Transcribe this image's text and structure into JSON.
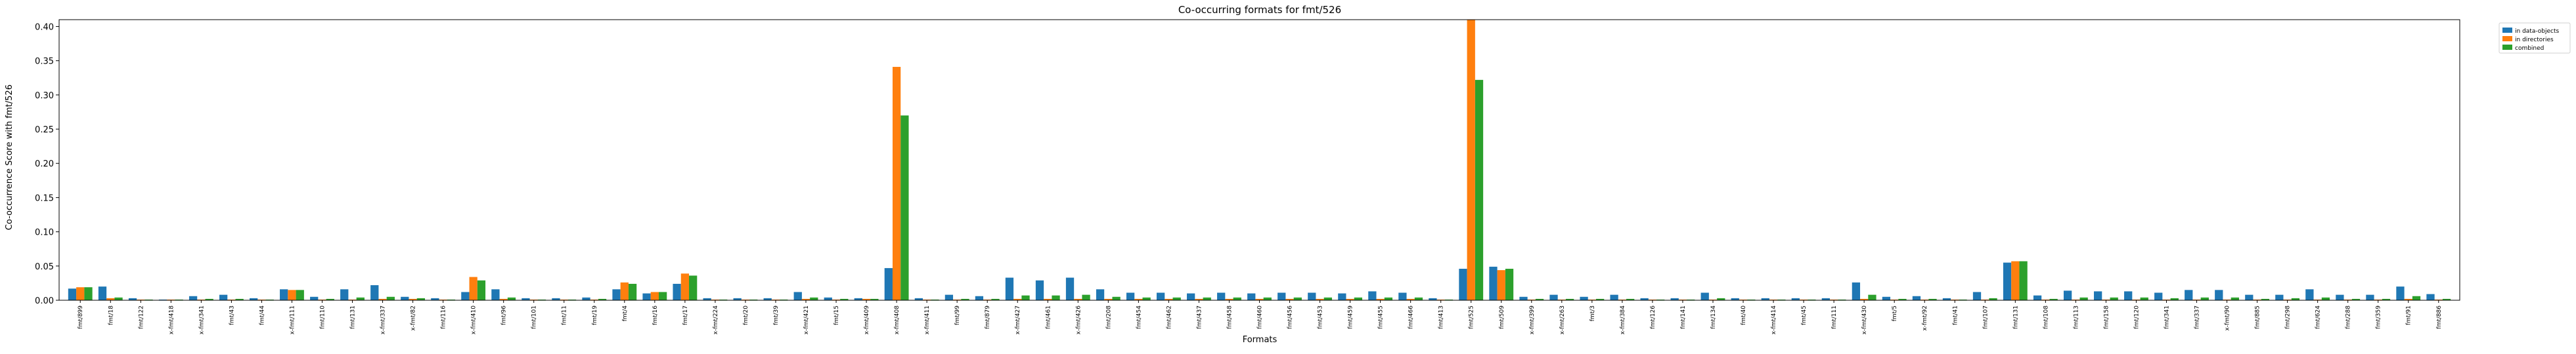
{
  "chart_data": {
    "type": "bar",
    "title": "Co-occurring formats for fmt/526",
    "xlabel": "Formats",
    "ylabel": "Co-occurrence Score with fmt/526",
    "ylim": [
      0,
      0.41
    ],
    "yticks": [
      0.0,
      0.05,
      0.1,
      0.15,
      0.2,
      0.25,
      0.3,
      0.35,
      0.4
    ],
    "grid": false,
    "legend": "outside-top-right",
    "categories": [
      "fmt/899",
      "fmt/18",
      "fmt/122",
      "x-fmt/418",
      "x-fmt/341",
      "fmt/43",
      "fmt/44",
      "x-fmt/111",
      "fmt/110",
      "fmt/131",
      "x-fmt/337",
      "x-fmt/82",
      "fmt/116",
      "x-fmt/410",
      "fmt/96",
      "fmt/101",
      "fmt/11",
      "fmt/19",
      "fmt/4",
      "fmt/16",
      "fmt/17",
      "x-fmt/224",
      "fmt/20",
      "fmt/39",
      "x-fmt/421",
      "fmt/15",
      "x-fmt/409",
      "x-fmt/408",
      "x-fmt/411",
      "fmt/99",
      "fmt/879",
      "x-fmt/427",
      "fmt/461",
      "x-fmt/426",
      "fmt/208",
      "fmt/454",
      "fmt/462",
      "fmt/437",
      "fmt/458",
      "fmt/460",
      "fmt/456",
      "fmt/453",
      "fmt/459",
      "fmt/455",
      "fmt/466",
      "fmt/413",
      "fmt/525",
      "fmt/509",
      "x-fmt/399",
      "x-fmt/263",
      "fmt/3",
      "x-fmt/384",
      "fmt/126",
      "fmt/141",
      "fmt/134",
      "fmt/40",
      "x-fmt/414",
      "fmt/45",
      "fmt/111",
      "x-fmt/430",
      "fmt/5",
      "x-fmt/92",
      "fmt/41",
      "fmt/107",
      "fmt/131",
      "fmt/108",
      "fmt/113",
      "fmt/158",
      "fmt/120",
      "fmt/341",
      "fmt/337",
      "x-fmt/90",
      "fmt/885",
      "fmt/298",
      "fmt/624",
      "fmt/288",
      "fmt/359",
      "fmt/91",
      "fmt/886"
    ],
    "series": [
      {
        "name": "in data-objects",
        "color": "#1f77b4",
        "values": [
          0.017,
          0.02,
          0.003,
          0.001,
          0.006,
          0.008,
          0.003,
          0.016,
          0.005,
          0.016,
          0.022,
          0.005,
          0.003,
          0.012,
          0.016,
          0.003,
          0.003,
          0.004,
          0.016,
          0.01,
          0.024,
          0.003,
          0.003,
          0.003,
          0.012,
          0.004,
          0.003,
          0.047,
          0.003,
          0.008,
          0.006,
          0.033,
          0.029,
          0.033,
          0.016,
          0.011,
          0.011,
          0.01,
          0.011,
          0.01,
          0.011,
          0.011,
          0.01,
          0.013,
          0.011,
          0.003,
          0.046,
          0.049,
          0.005,
          0.008,
          0.005,
          0.008,
          0.003,
          0.003,
          0.011,
          0.003,
          0.003,
          0.003,
          0.003,
          0.026,
          0.005,
          0.006,
          0.003,
          0.012,
          0.055,
          0.007,
          0.014,
          0.013,
          0.013,
          0.011,
          0.015,
          0.015,
          0.008,
          0.008,
          0.016,
          0.008,
          0.008,
          0.02,
          0.009
        ]
      },
      {
        "name": "in directories",
        "color": "#ff7f0e",
        "values": [
          0.019,
          0.003,
          0.001,
          0.001,
          0.001,
          0.001,
          0.001,
          0.015,
          0.001,
          0.001,
          0.002,
          0.002,
          0.001,
          0.034,
          0.002,
          0.001,
          0.001,
          0.001,
          0.026,
          0.012,
          0.039,
          0.001,
          0.001,
          0.001,
          0.002,
          0.001,
          0.002,
          0.341,
          0.001,
          0.001,
          0.001,
          0.002,
          0.002,
          0.002,
          0.002,
          0.002,
          0.002,
          0.002,
          0.002,
          0.002,
          0.002,
          0.002,
          0.002,
          0.002,
          0.002,
          0.001,
          0.41,
          0.044,
          0.001,
          0.001,
          0.001,
          0.001,
          0.001,
          0.001,
          0.001,
          0.001,
          0.001,
          0.001,
          0.001,
          0.002,
          0.001,
          0.001,
          0.001,
          0.001,
          0.057,
          0.001,
          0.001,
          0.001,
          0.001,
          0.001,
          0.001,
          0.001,
          0.001,
          0.001,
          0.001,
          0.001,
          0.001,
          0.002,
          0.001
        ]
      },
      {
        "name": "combined",
        "color": "#2ca02c",
        "values": [
          0.019,
          0.004,
          0.001,
          0.001,
          0.002,
          0.002,
          0.001,
          0.015,
          0.002,
          0.004,
          0.005,
          0.003,
          0.001,
          0.029,
          0.004,
          0.001,
          0.001,
          0.002,
          0.024,
          0.012,
          0.036,
          0.001,
          0.001,
          0.001,
          0.004,
          0.002,
          0.002,
          0.27,
          0.001,
          0.002,
          0.002,
          0.007,
          0.007,
          0.008,
          0.005,
          0.004,
          0.004,
          0.004,
          0.004,
          0.004,
          0.004,
          0.004,
          0.004,
          0.004,
          0.004,
          0.001,
          0.322,
          0.046,
          0.002,
          0.002,
          0.002,
          0.002,
          0.001,
          0.001,
          0.003,
          0.001,
          0.001,
          0.001,
          0.001,
          0.008,
          0.002,
          0.002,
          0.001,
          0.003,
          0.057,
          0.002,
          0.004,
          0.004,
          0.004,
          0.003,
          0.004,
          0.004,
          0.002,
          0.003,
          0.004,
          0.002,
          0.002,
          0.006,
          0.002
        ]
      }
    ]
  }
}
